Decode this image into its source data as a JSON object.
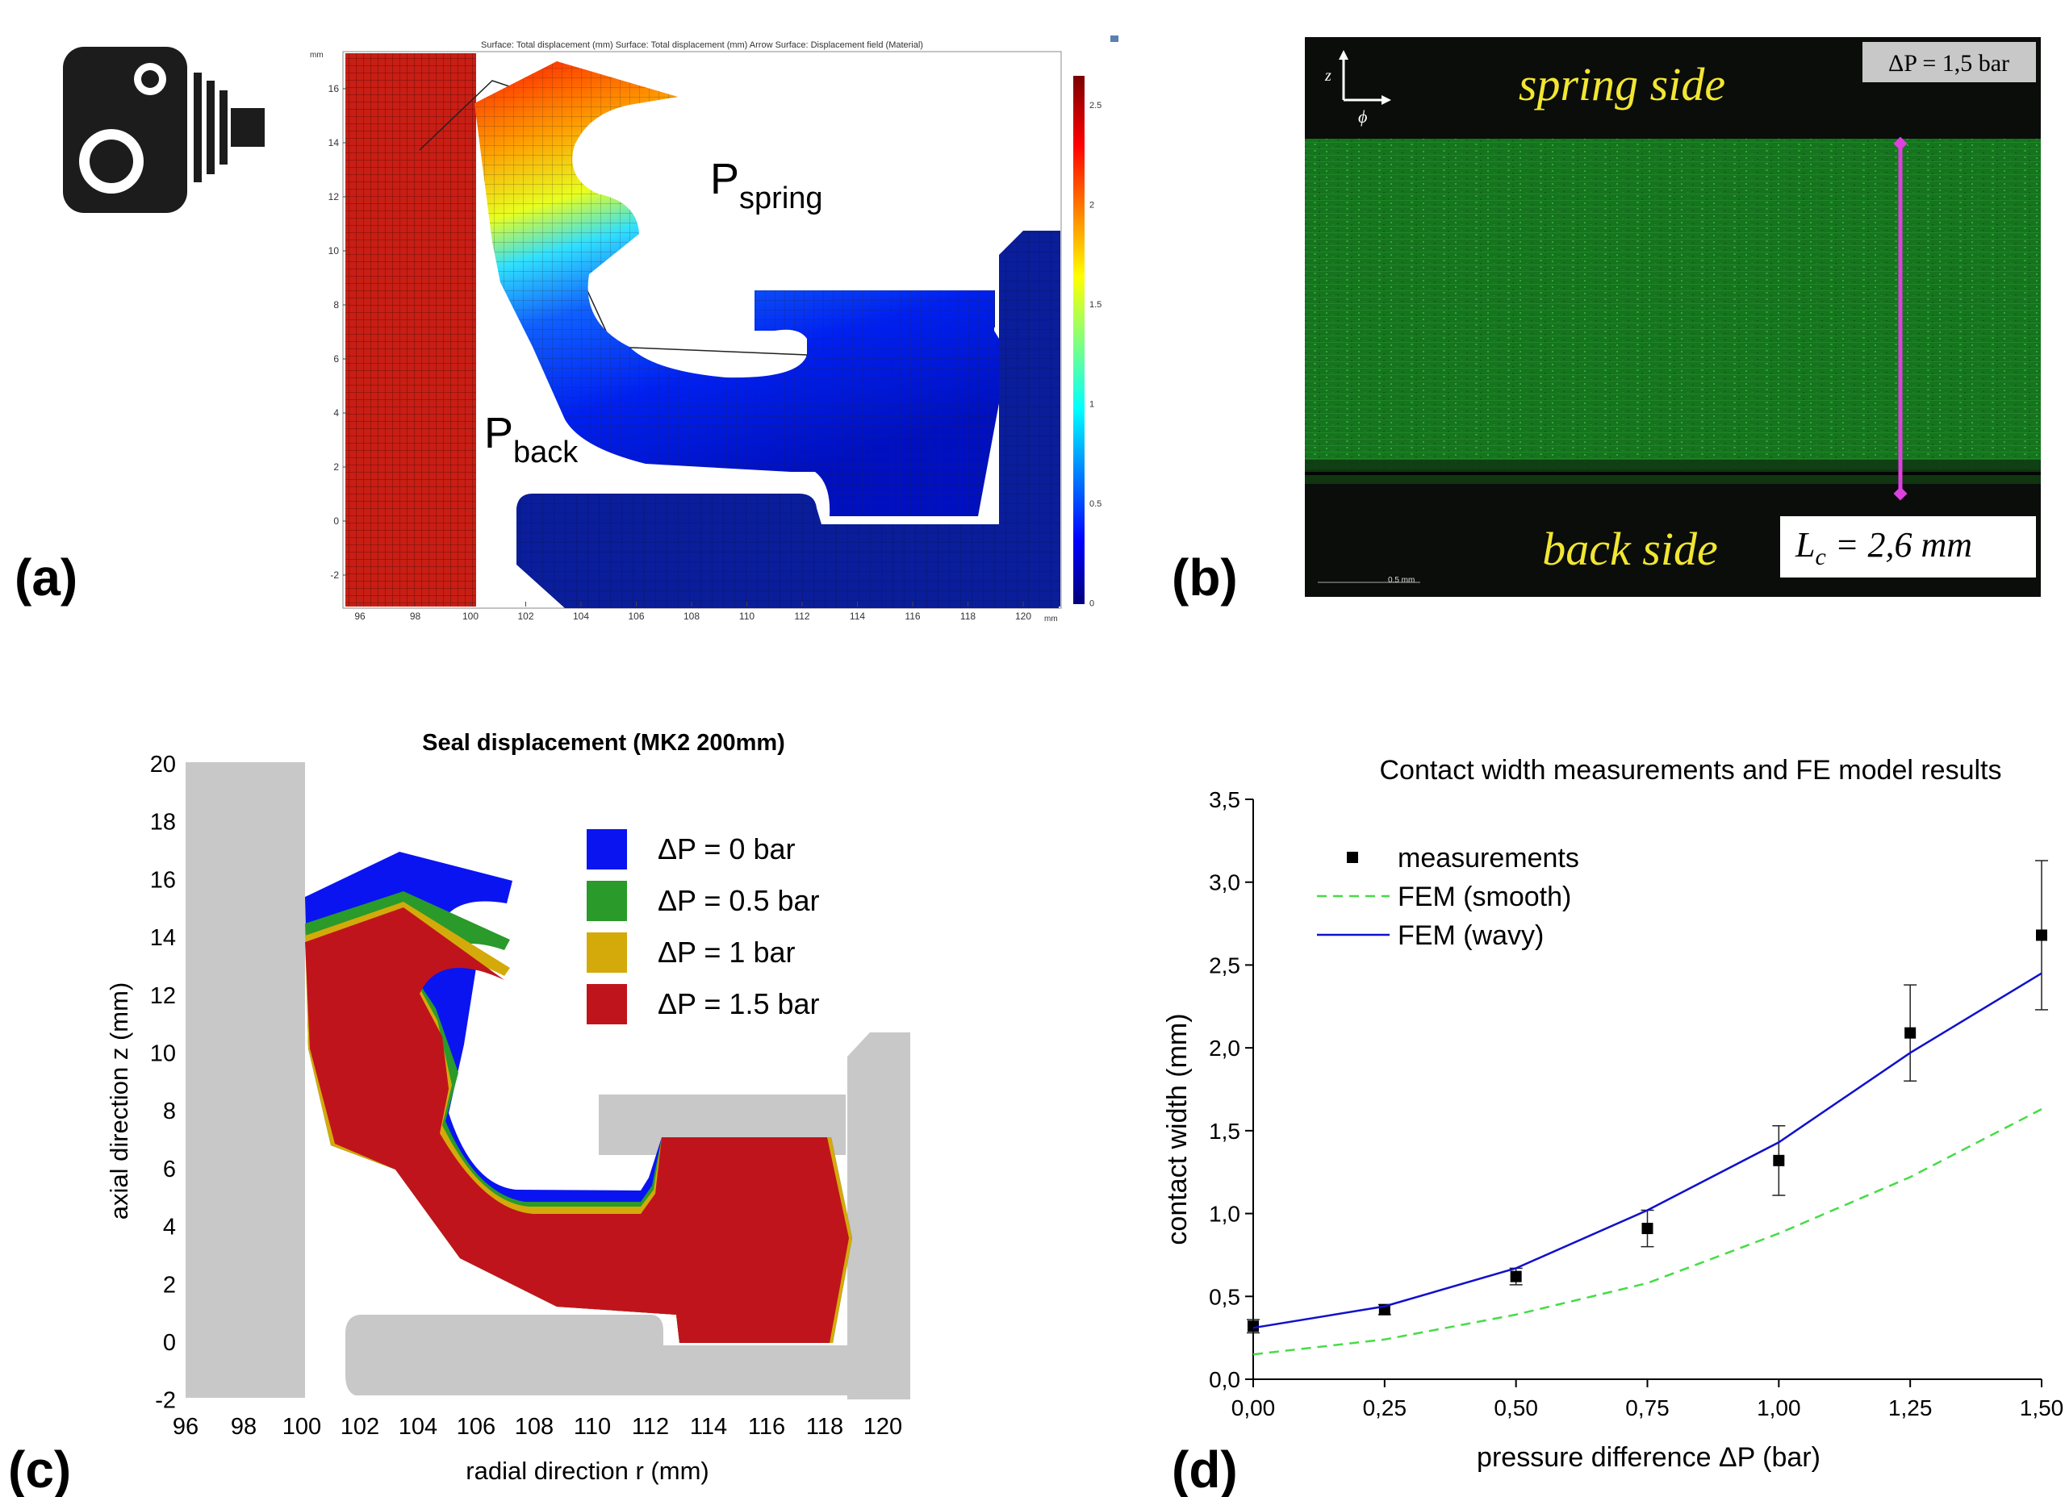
{
  "panels": {
    "a": {
      "label": "(a)",
      "header": "Surface: Total displacement (mm)  Surface: Total displacement (mm)  Arrow Surface: Displacement field (Material)",
      "axis_unit_y": "mm",
      "axis_unit_x": "mm",
      "x_ticks": [
        "96",
        "98",
        "100",
        "102",
        "104",
        "106",
        "108",
        "110",
        "112",
        "114",
        "116",
        "118",
        "120"
      ],
      "y_ticks": [
        "16",
        "14",
        "12",
        "10",
        "8",
        "6",
        "4",
        "2",
        "0",
        "-2"
      ],
      "colorbar_ticks": [
        "2.5",
        "2",
        "1.5",
        "1",
        "0.5",
        "0"
      ],
      "p_spring_main": "P",
      "p_spring_sub": "spring",
      "p_back_main": "P",
      "p_back_sub": "back",
      "camera_icon": "camera-icon"
    },
    "b": {
      "label": "(b)",
      "spring_side": "spring side",
      "back_side": "back side",
      "delta_p": "ΔP = 1,5 bar",
      "lc": "L",
      "lc_sub": "c",
      "lc_value": " = 2,6 mm",
      "axis_z": "z",
      "axis_phi": "ϕ",
      "scale_bar": "0.5 mm",
      "colors": {
        "background": "#0a0d0a",
        "fluorescence": "#1f8f2a",
        "caption": "#f2e632",
        "marker": "#e040e0"
      }
    },
    "c": {
      "label": "(c)",
      "title": "Seal displacement (MK2 200mm)",
      "xlabel": "radial direction r (mm)",
      "ylabel": "axial direction z (mm)",
      "x_ticks": [
        "96",
        "98",
        "100",
        "102",
        "104",
        "106",
        "108",
        "110",
        "112",
        "114",
        "116",
        "118",
        "120"
      ],
      "y_ticks": [
        "20",
        "18",
        "16",
        "14",
        "12",
        "10",
        "8",
        "6",
        "4",
        "2",
        "0",
        "-2"
      ],
      "legend": [
        {
          "label": "ΔP = 0 bar",
          "color": "#0a14f0"
        },
        {
          "label": "ΔP = 0.5 bar",
          "color": "#2a9a2a"
        },
        {
          "label": "ΔP = 1 bar",
          "color": "#d4aa0a"
        },
        {
          "label": "ΔP = 1.5 bar",
          "color": "#c0141c"
        }
      ],
      "housing_color": "#c8c8c8"
    },
    "d": {
      "label": "(d)",
      "chart_data": {
        "type": "line",
        "title": "Contact width measurements and FE model results",
        "xlabel": "pressure difference ΔP (bar)",
        "ylabel": "contact width (mm)",
        "xlim": [
          0,
          1.5
        ],
        "ylim": [
          0,
          3.5
        ],
        "x_tick_labels": [
          "0,00",
          "0,25",
          "0,50",
          "0,75",
          "1,00",
          "1,25",
          "1,50"
        ],
        "y_tick_labels": [
          "0,0",
          "0,5",
          "1,0",
          "1,5",
          "2,0",
          "2,5",
          "3,0",
          "3,5"
        ],
        "legend_position": "top-left",
        "series": [
          {
            "name": "measurements",
            "kind": "scatter",
            "color": "#000000",
            "x": [
              0,
              0.25,
              0.5,
              0.75,
              1.0,
              1.25,
              1.5
            ],
            "y": [
              0.32,
              0.42,
              0.62,
              0.91,
              1.32,
              2.09,
              2.68
            ],
            "err": [
              0.04,
              0.03,
              0.05,
              0.11,
              0.21,
              0.29,
              0.45
            ]
          },
          {
            "name": "FEM (smooth)",
            "kind": "dashed-line",
            "color": "#44dd44",
            "x": [
              0,
              0.25,
              0.5,
              0.75,
              1.0,
              1.25,
              1.5
            ],
            "y": [
              0.15,
              0.24,
              0.39,
              0.58,
              0.88,
              1.22,
              1.63
            ]
          },
          {
            "name": "FEM (wavy)",
            "kind": "line",
            "color": "#1010cc",
            "x": [
              0,
              0.25,
              0.5,
              0.75,
              1.0,
              1.25,
              1.5
            ],
            "y": [
              0.31,
              0.44,
              0.67,
              1.02,
              1.43,
              1.97,
              2.45
            ]
          }
        ]
      }
    }
  }
}
